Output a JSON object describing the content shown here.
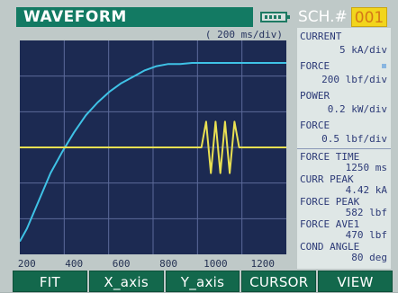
{
  "header": {
    "title": "WAVEFORM",
    "schedule_label": "SCH.#",
    "schedule_number": "001",
    "battery_icon": "battery-icon"
  },
  "plot": {
    "time_scale": "( 200 ms/div)",
    "x_ticks": [
      "200",
      "400",
      "600",
      "800",
      "1000",
      "1200"
    ]
  },
  "chart_data": {
    "type": "line",
    "title": "",
    "xlabel": "",
    "ylabel": "",
    "x_ticks": [
      "200",
      "400",
      "600",
      "800",
      "1000",
      "1200"
    ],
    "xlim": [
      170,
      1300
    ],
    "grid": true,
    "series": [
      {
        "color": "#3fc2e6",
        "x": [
          170,
          200,
          250,
          300,
          350,
          400,
          450,
          500,
          550,
          600,
          650,
          700,
          750,
          800,
          850,
          900,
          1000,
          1100,
          1200,
          1300
        ],
        "y": [
          0.06,
          0.12,
          0.25,
          0.38,
          0.48,
          0.57,
          0.65,
          0.71,
          0.76,
          0.8,
          0.83,
          0.86,
          0.88,
          0.89,
          0.89,
          0.895,
          0.895,
          0.895,
          0.895,
          0.895
        ]
      },
      {
        "color": "#e9e052",
        "x": [
          170,
          940,
          960,
          980,
          1000,
          1020,
          1040,
          1060,
          1080,
          1100,
          1300
        ],
        "y": [
          0.5,
          0.5,
          0.62,
          0.38,
          0.62,
          0.38,
          0.62,
          0.38,
          0.62,
          0.5,
          0.5
        ]
      }
    ]
  },
  "readouts": [
    {
      "label": "CURRENT",
      "value": "5 kA/div"
    },
    {
      "label": "FORCE",
      "value": "200 lbf/div"
    },
    {
      "label": "POWER",
      "value": "0.2 kW/div"
    },
    {
      "label": "FORCE",
      "value": "0.5 lbf/div"
    }
  ],
  "results": [
    {
      "label": "FORCE TIME",
      "value": "1250 ms"
    },
    {
      "label": "CURR PEAK",
      "value": "4.42 kA"
    },
    {
      "label": "FORCE PEAK",
      "value": "582 lbf"
    },
    {
      "label": "FORCE AVE1",
      "value": "470 lbf"
    },
    {
      "label": "COND ANGLE",
      "value": "80 deg"
    }
  ],
  "softkeys": [
    "FIT",
    "X_axis",
    "Y_axis",
    "CURSOR",
    "VIEW"
  ]
}
